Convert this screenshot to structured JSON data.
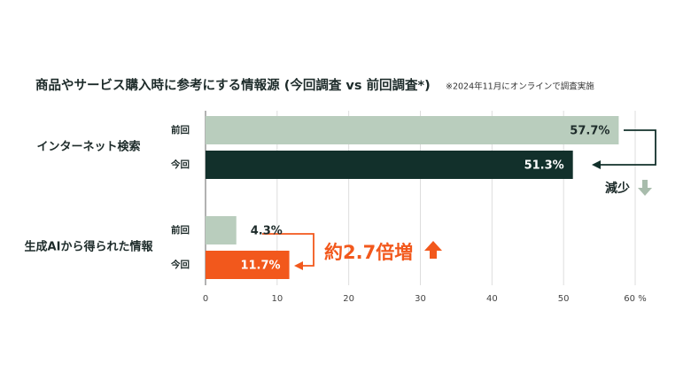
{
  "chart_data": {
    "type": "bar",
    "orientation": "horizontal",
    "title": "商品やサービス購入時に参考にする情報源 (今回調査 vs 前回調査*)",
    "subtitle": "※2024年11月にオンラインで調査実施",
    "categories": [
      "インターネット検索",
      "生成AIから得られた情報"
    ],
    "series": [
      {
        "name": "前回",
        "color": "#b9cdbd",
        "values": [
          57.7,
          4.3
        ],
        "value_labels": [
          "57.7%",
          "4.3%"
        ]
      },
      {
        "name": "今回",
        "colors": [
          "#12302b",
          "#f2581c"
        ],
        "values": [
          51.3,
          11.7
        ],
        "value_labels": [
          "51.3%",
          "11.7%"
        ]
      }
    ],
    "xlim": [
      0,
      60
    ],
    "xticks": [
      0,
      10,
      20,
      30,
      40,
      50,
      {
        "value": 60,
        "label": "60 %"
      }
    ],
    "grid": true,
    "annotations": [
      "減少",
      "約2.7倍増"
    ]
  }
}
